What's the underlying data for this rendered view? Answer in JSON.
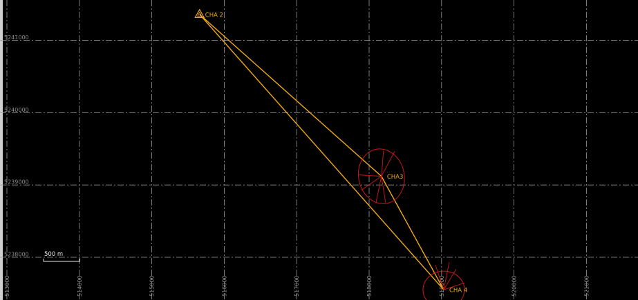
{
  "map": {
    "easting_labels": [
      "513000",
      "514000",
      "515000",
      "516000",
      "517000",
      "518000",
      "519000",
      "520000",
      "521000"
    ],
    "northing_labels": [
      "5238000",
      "5239000",
      "5240000",
      "5241000"
    ],
    "scale_bar": {
      "label": "500 m",
      "length_m": 500
    },
    "stations": [
      {
        "name": "CHA 2",
        "easting": 515660,
        "northing": 5241360,
        "symbol": "triangle"
      },
      {
        "name": "CHA3",
        "easting": 518170,
        "northing": 5239120,
        "symbol": "error-ellipse"
      },
      {
        "name": "CHA 4",
        "easting": 519030,
        "northing": 5237550,
        "symbol": "error-ellipse"
      }
    ],
    "observations": [
      {
        "from": "CHA 2",
        "to": "CHA3"
      },
      {
        "from": "CHA 2",
        "to": "CHA 4"
      },
      {
        "from": "CHA3",
        "to": "CHA 4"
      }
    ],
    "colors": {
      "background": "#000000",
      "grid": "#9a9a9a",
      "observation_line": "#f0a818",
      "error_ellipse": "#d01818",
      "station_label": "#f0a818",
      "grid_label": "#8a8a8a",
      "scale_bar": "#e8e8e8"
    }
  }
}
